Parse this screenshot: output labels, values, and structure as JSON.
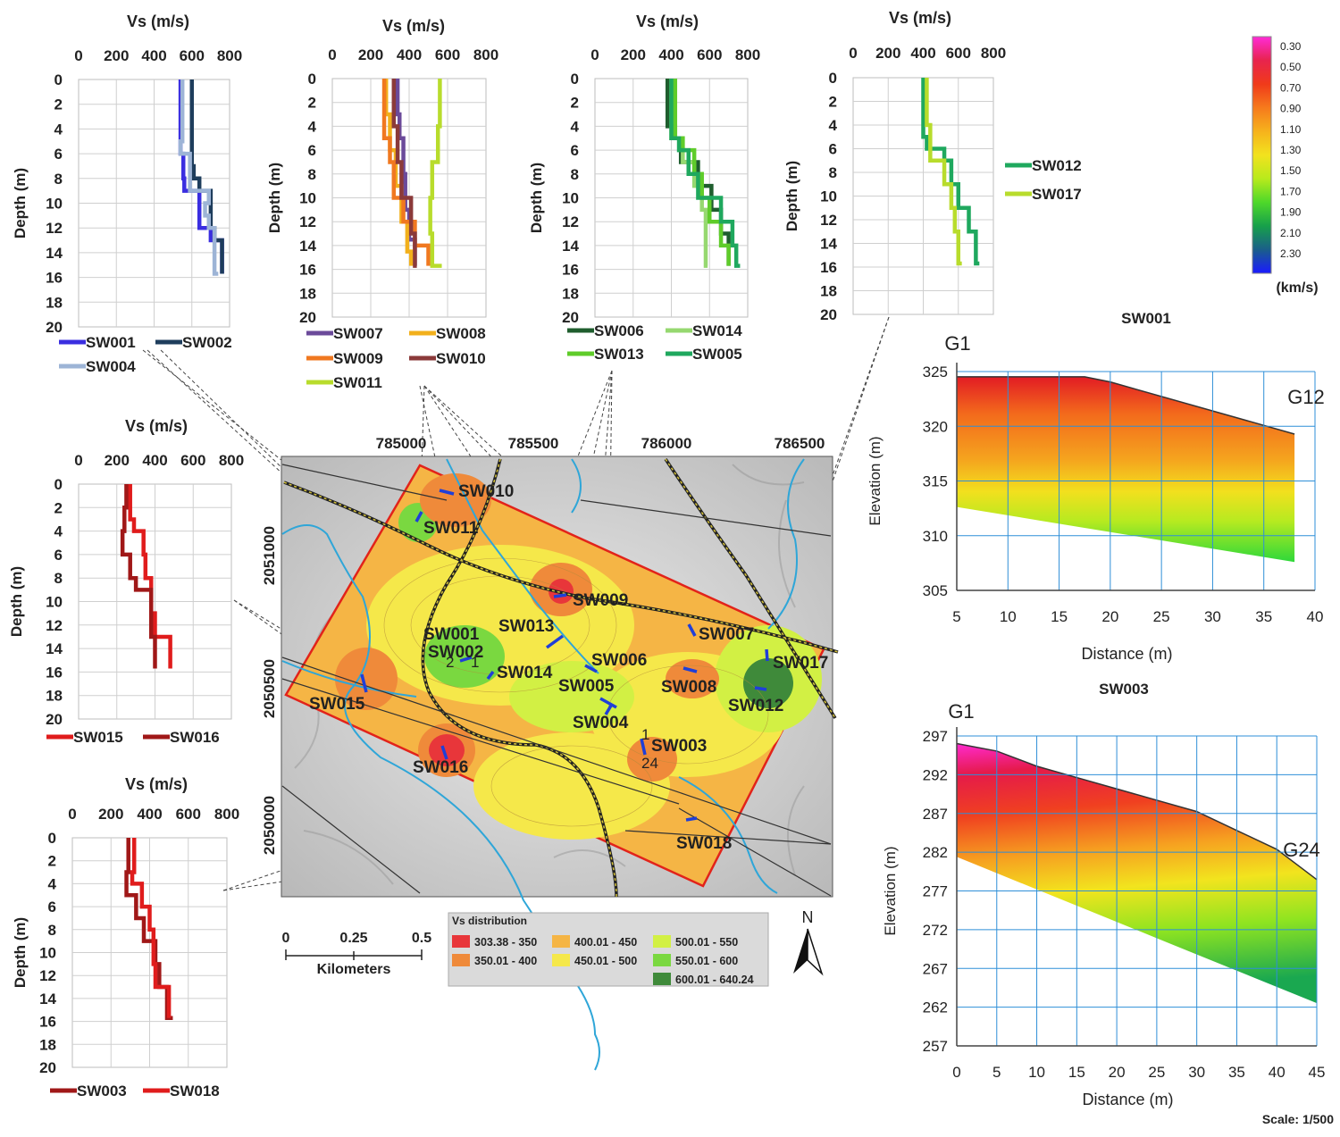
{
  "profiles": [
    {
      "id": "p1",
      "title": "Vs (m/s)",
      "ylabel": "Depth (m)",
      "xticks": [
        "0",
        "200",
        "400",
        "600",
        "800"
      ],
      "yticks": [
        "0",
        "2",
        "4",
        "6",
        "8",
        "10",
        "12",
        "14",
        "16",
        "18",
        "20"
      ],
      "xlim": [
        0,
        800
      ],
      "ylim": [
        0,
        20
      ],
      "series": [
        {
          "name": "SW001",
          "color": "#3a2ee0",
          "steps": [
            [
              0,
              540
            ],
            [
              6,
              555
            ],
            [
              8,
              560
            ],
            [
              9,
              640
            ],
            [
              11,
              640
            ],
            [
              12,
              700
            ],
            [
              13,
              760
            ],
            [
              15.7,
              760
            ]
          ]
        },
        {
          "name": "SW002",
          "color": "#1e3d5c",
          "steps": [
            [
              0,
              600
            ],
            [
              7,
              610
            ],
            [
              8,
              640
            ],
            [
              9,
              700
            ],
            [
              12,
              720
            ],
            [
              13,
              760
            ],
            [
              15.7,
              760
            ]
          ]
        },
        {
          "name": "SW004",
          "color": "#9db4d6",
          "steps": [
            [
              0,
              550
            ],
            [
              5,
              540
            ],
            [
              6,
              590
            ],
            [
              9,
              690
            ],
            [
              10,
              670
            ],
            [
              11,
              690
            ],
            [
              12,
              720
            ],
            [
              15.7,
              740
            ]
          ]
        }
      ]
    },
    {
      "id": "p2",
      "title": "Vs (m/s)",
      "ylabel": "Depth (m)",
      "xticks": [
        "0",
        "200",
        "400",
        "600",
        "800"
      ],
      "yticks": [
        "0",
        "2",
        "4",
        "6",
        "8",
        "10",
        "12",
        "14",
        "16",
        "18",
        "20"
      ],
      "xlim": [
        0,
        800
      ],
      "ylim": [
        0,
        20
      ],
      "series": [
        {
          "name": "SW007",
          "color": "#6b4a9a",
          "steps": [
            [
              0,
              340
            ],
            [
              3,
              350
            ],
            [
              5,
              370
            ],
            [
              8,
              380
            ],
            [
              11,
              400
            ],
            [
              13.5,
              430
            ],
            [
              15.7,
              430
            ]
          ]
        },
        {
          "name": "SW008",
          "color": "#f2b01c",
          "steps": [
            [
              0,
              280
            ],
            [
              3,
              300
            ],
            [
              6,
              330
            ],
            [
              9,
              360
            ],
            [
              12,
              390
            ],
            [
              14.5,
              410
            ],
            [
              15.7,
              410
            ]
          ]
        },
        {
          "name": "SW009",
          "color": "#f07820",
          "steps": [
            [
              0,
              270
            ],
            [
              5,
              300
            ],
            [
              7,
              320
            ],
            [
              10,
              370
            ],
            [
              12,
              430
            ],
            [
              14,
              500
            ],
            [
              15.7,
              500
            ]
          ]
        },
        {
          "name": "SW010",
          "color": "#8b3a3a",
          "steps": [
            [
              0,
              320
            ],
            [
              4,
              340
            ],
            [
              7,
              360
            ],
            [
              10,
              410
            ],
            [
              13,
              430
            ],
            [
              15.7,
              440
            ]
          ]
        },
        {
          "name": "SW011",
          "color": "#b8dc2c",
          "steps": [
            [
              0,
              560
            ],
            [
              4,
              550
            ],
            [
              7,
              520
            ],
            [
              10,
              510
            ],
            [
              13,
              520
            ],
            [
              15.7,
              570
            ]
          ]
        }
      ]
    },
    {
      "id": "p3",
      "title": "Vs (m/s)",
      "ylabel": "Depth (m)",
      "xticks": [
        "0",
        "200",
        "400",
        "600",
        "800"
      ],
      "yticks": [
        "0",
        "2",
        "4",
        "6",
        "8",
        "10",
        "12",
        "14",
        "16",
        "18",
        "20"
      ],
      "xlim": [
        0,
        800
      ],
      "ylim": [
        0,
        20
      ],
      "series": [
        {
          "name": "SW006",
          "color": "#1f5e2e",
          "steps": [
            [
              0,
              380
            ],
            [
              4,
              420
            ],
            [
              5,
              450
            ],
            [
              7,
              540
            ],
            [
              9,
              610
            ],
            [
              11,
              660
            ],
            [
              13,
              700
            ],
            [
              15.7,
              700
            ]
          ]
        },
        {
          "name": "SW014",
          "color": "#96d870",
          "steps": [
            [
              0,
              400
            ],
            [
              5,
              460
            ],
            [
              7,
              520
            ],
            [
              9,
              560
            ],
            [
              11,
              580
            ],
            [
              13,
              580
            ],
            [
              15.7,
              590
            ]
          ]
        },
        {
          "name": "SW013",
          "color": "#5fcc2a",
          "steps": [
            [
              0,
              420
            ],
            [
              5,
              460
            ],
            [
              6,
              520
            ],
            [
              8,
              560
            ],
            [
              10,
              600
            ],
            [
              12,
              660
            ],
            [
              14,
              700
            ],
            [
              15.7,
              700
            ]
          ]
        },
        {
          "name": "SW005",
          "color": "#1fa85e",
          "steps": [
            [
              0,
              400
            ],
            [
              5,
              440
            ],
            [
              6,
              490
            ],
            [
              8,
              540
            ],
            [
              10,
              660
            ],
            [
              12,
              720
            ],
            [
              14,
              740
            ],
            [
              15.7,
              760
            ]
          ]
        }
      ]
    },
    {
      "id": "p4",
      "title": "Vs (m/s)",
      "ylabel": "Depth (m)",
      "xticks": [
        "0",
        "200",
        "400",
        "600",
        "800"
      ],
      "yticks": [
        "0",
        "2",
        "4",
        "6",
        "8",
        "10",
        "12",
        "14",
        "16",
        "18",
        "20"
      ],
      "xlim": [
        0,
        800
      ],
      "ylim": [
        0,
        20
      ],
      "series": [
        {
          "name": "SW012",
          "color": "#1fa85e",
          "steps": [
            [
              0,
              400
            ],
            [
              5,
              420
            ],
            [
              6,
              520
            ],
            [
              7,
              560
            ],
            [
              9,
              600
            ],
            [
              11,
              660
            ],
            [
              13,
              700
            ],
            [
              15.7,
              720
            ]
          ]
        },
        {
          "name": "SW017",
          "color": "#b8dc2c",
          "steps": [
            [
              0,
              420
            ],
            [
              4,
              440
            ],
            [
              7,
              520
            ],
            [
              9,
              560
            ],
            [
              11,
              580
            ],
            [
              13,
              600
            ],
            [
              15.7,
              620
            ]
          ]
        }
      ]
    },
    {
      "id": "p5",
      "title": "Vs (m/s)",
      "ylabel": "Depth (m)",
      "xticks": [
        "0",
        "200",
        "400",
        "600",
        "800"
      ],
      "yticks": [
        "0",
        "2",
        "4",
        "6",
        "8",
        "10",
        "12",
        "14",
        "16",
        "18",
        "20"
      ],
      "xlim": [
        0,
        800
      ],
      "ylim": [
        0,
        20
      ],
      "series": [
        {
          "name": "SW015",
          "color": "#e01c1c",
          "steps": [
            [
              0,
              270
            ],
            [
              3,
              290
            ],
            [
              4,
              340
            ],
            [
              6,
              350
            ],
            [
              8,
              380
            ],
            [
              11,
              400
            ],
            [
              13,
              480
            ],
            [
              15.7,
              480
            ]
          ]
        },
        {
          "name": "SW016",
          "color": "#a01818",
          "steps": [
            [
              0,
              250
            ],
            [
              2,
              240
            ],
            [
              4,
              230
            ],
            [
              6,
              270
            ],
            [
              8,
              300
            ],
            [
              9,
              380
            ],
            [
              11,
              380
            ],
            [
              13,
              400
            ],
            [
              15.7,
              400
            ]
          ]
        }
      ]
    },
    {
      "id": "p6",
      "title": "Vs (m/s)",
      "ylabel": "Depth (m)",
      "xticks": [
        "0",
        "200",
        "400",
        "600",
        "800"
      ],
      "yticks": [
        "0",
        "2",
        "4",
        "6",
        "8",
        "10",
        "12",
        "14",
        "16",
        "18",
        "20"
      ],
      "xlim": [
        0,
        800
      ],
      "ylim": [
        0,
        20
      ],
      "series": [
        {
          "name": "SW003",
          "color": "#a01818",
          "steps": [
            [
              0,
              290
            ],
            [
              3,
              280
            ],
            [
              5,
              330
            ],
            [
              7,
              370
            ],
            [
              9,
              430
            ],
            [
              11,
              450
            ],
            [
              13,
              490
            ],
            [
              15.7,
              520
            ]
          ]
        },
        {
          "name": "SW018",
          "color": "#e01c1c",
          "steps": [
            [
              0,
              320
            ],
            [
              3,
              310
            ],
            [
              4,
              360
            ],
            [
              6,
              400
            ],
            [
              8,
              420
            ],
            [
              11,
              430
            ],
            [
              13,
              500
            ],
            [
              15.7,
              500
            ]
          ]
        }
      ]
    }
  ],
  "map": {
    "xticks": [
      "785000",
      "785500",
      "786000",
      "786500"
    ],
    "yticks": [
      "2051000",
      "2050500",
      "2050000"
    ],
    "stations": [
      "SW010",
      "SW011",
      "SW009",
      "SW001",
      "SW002",
      "SW013",
      "SW014",
      "SW006",
      "SW005",
      "SW007",
      "SW008",
      "SW017",
      "SW012",
      "SW004",
      "SW015",
      "SW016",
      "SW003",
      "SW018"
    ],
    "small_labels": [
      "2",
      "1",
      "1",
      "24"
    ],
    "scale": {
      "ticks": [
        "0",
        "0.25",
        "0.5"
      ],
      "unit": "Kilometers"
    },
    "north": "N",
    "legend": {
      "title": "Vs distribution",
      "classes": [
        {
          "label": "303.38 - 350",
          "color": "#e8363a"
        },
        {
          "label": "350.01 - 400",
          "color": "#ef8a3a"
        },
        {
          "label": "400.01 - 450",
          "color": "#f5b545"
        },
        {
          "label": "450.01 - 500",
          "color": "#f5e84a"
        },
        {
          "label": "500.01 - 550",
          "color": "#d2f044"
        },
        {
          "label": "550.01 - 600",
          "color": "#7ad840"
        },
        {
          "label": "600.01 - 640.24",
          "color": "#3f8a3a"
        }
      ]
    }
  },
  "colorbar": {
    "labels": [
      "0.30",
      "0.50",
      "0.70",
      "0.90",
      "1.10",
      "1.30",
      "1.50",
      "1.70",
      "1.90",
      "2.10",
      "2.30"
    ],
    "unit": "(km/s)"
  },
  "sections": [
    {
      "title": "SW001",
      "ylabel": "Elevation (m)",
      "xlabel": "Distance (m)",
      "xticks": [
        "5",
        "10",
        "15",
        "20",
        "25",
        "30",
        "35",
        "40"
      ],
      "yticks": [
        "325",
        "320",
        "315",
        "310",
        "305"
      ],
      "xlim": [
        5,
        40
      ],
      "ylim": [
        305,
        326
      ],
      "start_label": "G1",
      "end_label": "G12"
    },
    {
      "title": "SW003",
      "ylabel": "Elevation (m)",
      "xlabel": "Distance (m)",
      "xticks": [
        "0",
        "5",
        "10",
        "15",
        "20",
        "25",
        "30",
        "35",
        "40",
        "45"
      ],
      "yticks": [
        "297",
        "292",
        "287",
        "282",
        "277",
        "272",
        "267",
        "262",
        "257"
      ],
      "xlim": [
        0,
        45
      ],
      "ylim": [
        257,
        298
      ],
      "start_label": "G1",
      "end_label": "G24"
    }
  ],
  "scale_note": "Scale: 1/500"
}
